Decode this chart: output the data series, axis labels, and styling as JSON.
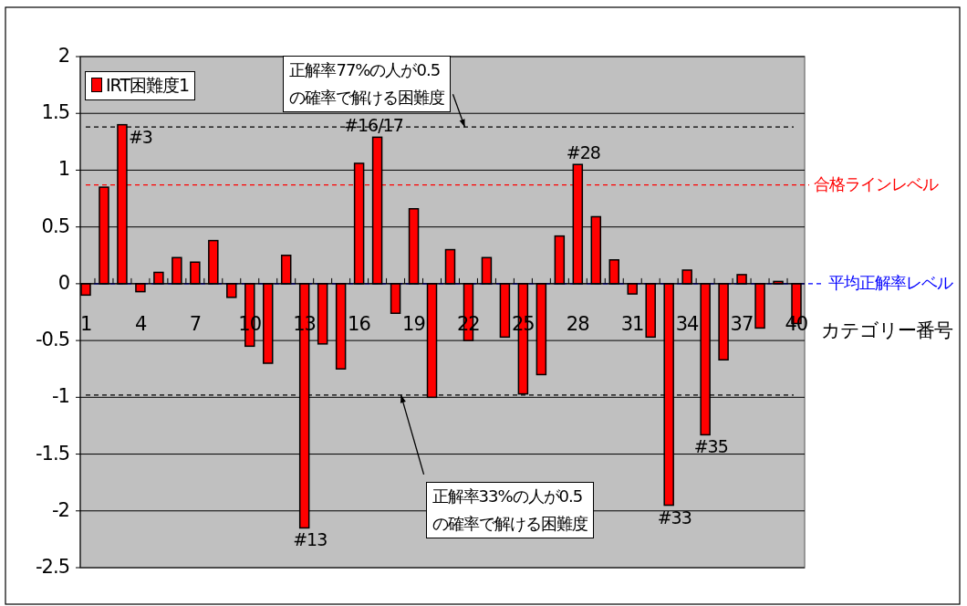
{
  "chart_data": {
    "type": "bar",
    "xlabel": "カテゴリー番号",
    "x": [
      1,
      2,
      3,
      4,
      5,
      6,
      7,
      8,
      9,
      10,
      11,
      12,
      13,
      14,
      15,
      16,
      17,
      18,
      19,
      20,
      21,
      22,
      23,
      24,
      25,
      26,
      27,
      28,
      29,
      30,
      31,
      32,
      33,
      34,
      35,
      36,
      37,
      38,
      39,
      40
    ],
    "xlim": [
      0.7,
      40.45
    ],
    "xticks": [
      1,
      4,
      7,
      10,
      13,
      16,
      19,
      22,
      25,
      28,
      31,
      34,
      37,
      40
    ],
    "ylim": [
      -2.5,
      2
    ],
    "yticks": [
      -2.5,
      -2,
      -1.5,
      -1,
      -0.5,
      0,
      0.5,
      1,
      1.5,
      2
    ],
    "grid": "y",
    "legend": "top left",
    "series": [
      {
        "name": "IRT困難度1",
        "color": "#ff0000",
        "values": [
          -0.1,
          0.85,
          1.4,
          -0.07,
          0.1,
          0.23,
          0.19,
          0.38,
          -0.12,
          -0.55,
          -0.7,
          0.25,
          -2.15,
          -0.53,
          -0.75,
          1.06,
          1.29,
          -0.26,
          0.66,
          -1.0,
          0.3,
          -0.5,
          0.23,
          -0.47,
          -0.97,
          -0.8,
          0.42,
          1.05,
          0.59,
          0.21,
          -0.09,
          -0.47,
          -1.95,
          0.12,
          -1.33,
          -0.67,
          0.08,
          -0.39,
          0.02,
          -0.35
        ]
      }
    ],
    "ref_lines": [
      {
        "axis": "y",
        "value": 1.38,
        "color": "#000000",
        "line_style": "dashed"
      },
      {
        "axis": "y",
        "value": 0.87,
        "color": "#ff0000",
        "line_style": "dashed",
        "label": "合格ラインレベル"
      },
      {
        "axis": "y",
        "value": 0,
        "color": "#0000ff",
        "line_style": "dashed",
        "label": "平均正解率レベル"
      },
      {
        "axis": "y",
        "value": -0.98,
        "color": "#000000",
        "line_style": "dashed"
      }
    ],
    "annotations": [
      {
        "text": "#3",
        "x": 3,
        "y": 1.4
      },
      {
        "text": "#16/17",
        "x": 16.5,
        "y": 1.29
      },
      {
        "text": "#28",
        "x": 28,
        "y": 1.05
      },
      {
        "text": "#13",
        "x": 13,
        "y": -2.15
      },
      {
        "text": "#33",
        "x": 33,
        "y": -1.95
      },
      {
        "text": "#35",
        "x": 35,
        "y": -1.33
      },
      {
        "text": "正解率77%の人が0.5\nの確率で解ける困難度",
        "x": 21.8,
        "y": 1.38
      },
      {
        "text": "正解率33%の人が0.5\nの確率で解ける困難度",
        "x": 18.3,
        "y": -0.98
      }
    ]
  }
}
